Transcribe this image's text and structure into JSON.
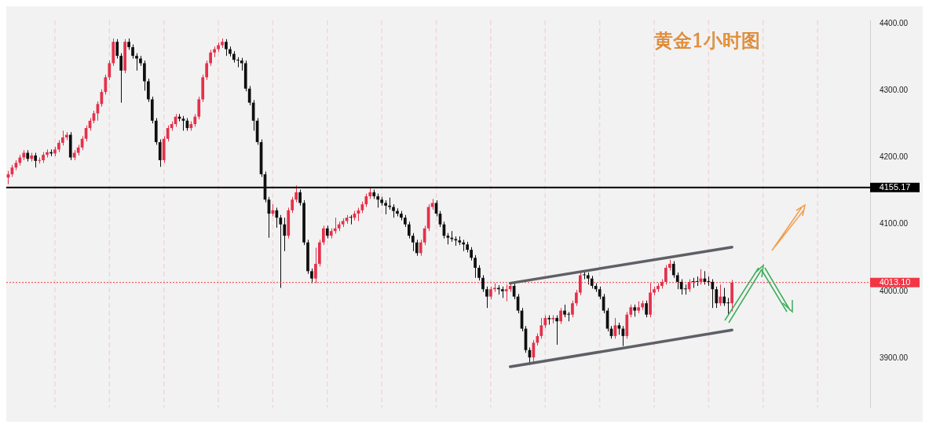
{
  "chart_data": {
    "type": "candlestick",
    "title": "黄金1小时图",
    "categories": [
      null,
      null,
      null,
      null,
      null,
      null,
      null,
      null,
      null,
      null,
      null,
      null,
      null,
      null,
      null,
      null,
      null,
      null,
      null,
      null,
      null,
      null,
      null,
      null,
      null,
      null,
      null,
      null,
      null,
      null,
      null,
      null,
      null,
      null,
      null,
      null,
      null,
      null,
      null,
      null,
      null,
      null,
      null,
      null,
      null,
      null,
      null,
      null,
      null,
      null,
      null,
      null,
      null,
      null,
      null,
      null,
      null,
      null,
      null,
      null,
      null,
      null,
      null,
      null,
      null,
      null,
      null,
      null,
      null,
      null,
      null,
      null,
      null,
      null,
      null,
      null,
      null,
      null,
      null,
      null,
      null,
      null,
      null,
      null,
      null,
      null,
      null,
      null,
      null,
      null,
      null,
      null,
      null,
      null,
      null,
      null,
      null,
      null,
      null,
      null,
      null,
      null,
      null,
      null,
      null,
      null,
      null,
      null,
      null,
      null,
      null,
      null,
      null,
      null,
      null,
      null,
      null,
      null,
      null,
      null,
      null,
      null,
      null,
      null,
      null,
      null,
      null,
      null,
      null,
      null,
      null,
      null,
      null,
      null,
      null,
      null,
      null,
      null,
      null,
      null,
      null,
      null,
      null,
      null,
      null,
      null,
      null,
      null,
      null,
      null,
      null,
      null,
      null,
      null,
      null,
      null,
      null,
      null,
      null,
      null,
      null,
      null,
      null,
      null,
      null,
      null,
      null,
      null,
      null,
      null,
      null,
      null,
      null,
      null,
      null,
      null,
      null,
      null,
      null,
      null,
      null,
      null,
      null,
      null,
      null,
      null,
      null,
      null,
      null,
      null,
      null,
      null,
      null,
      null,
      null,
      null,
      null,
      null,
      null,
      null,
      null,
      null,
      null,
      null,
      null,
      null,
      null,
      null,
      null,
      null,
      null,
      null,
      null,
      null,
      null,
      null,
      null,
      null,
      null,
      null,
      null,
      null
    ],
    "colors": [
      "#e5304a",
      "#e5304a",
      "#e5304a",
      "#e5304a",
      "#e5304a",
      "#0f0f0f",
      "#e5304a",
      "#0f0f0f",
      "#e5304a",
      "#e5304a",
      "#e5304a",
      "#0f0f0f",
      "#e5304a",
      "#e5304a",
      "#e5304a",
      "#e5304a",
      "#0f0f0f",
      "#e5304a",
      "#e5304a",
      "#e5304a",
      "#e5304a",
      "#e5304a",
      "#e5304a",
      "#e5304a",
      "#e5304a",
      "#e5304a",
      "#e5304a",
      "#e5304a",
      "#0f0f0f",
      "#0f0f0f",
      "#e5304a",
      "#0f0f0f",
      "#0f0f0f",
      "#0f0f0f",
      "#0f0f0f",
      "#0f0f0f",
      "#0f0f0f",
      "#0f0f0f",
      "#0f0f0f",
      "#0f0f0f",
      "#e5304a",
      "#e5304a",
      "#e5304a",
      "#e5304a",
      "#0f0f0f",
      "#0f0f0f",
      "#0f0f0f",
      "#e5304a",
      "#e5304a",
      "#e5304a",
      "#e5304a",
      "#e5304a",
      "#e5304a",
      "#e5304a",
      "#e5304a",
      "#e5304a",
      "#0f0f0f",
      "#0f0f0f",
      "#0f0f0f",
      "#0f0f0f",
      "#0f0f0f",
      "#0f0f0f",
      "#0f0f0f",
      "#0f0f0f",
      "#0f0f0f",
      "#0f0f0f",
      "#0f0f0f",
      "#0f0f0f",
      "#e5304a",
      "#0f0f0f",
      "#0f0f0f",
      "#0f0f0f",
      "#e5304a",
      "#e5304a",
      "#e5304a",
      "#0f0f0f",
      "#0f0f0f",
      "#0f0f0f",
      "#0f0f0f",
      "#e5304a",
      "#e5304a",
      "#e5304a",
      "#0f0f0f",
      "#e5304a",
      "#e5304a",
      "#e5304a",
      "#e5304a",
      "#e5304a",
      "#0f0f0f",
      "#e5304a",
      "#e5304a",
      "#e5304a",
      "#e5304a",
      "#e5304a",
      "#0f0f0f",
      "#0f0f0f",
      "#0f0f0f",
      "#0f0f0f",
      "#0f0f0f",
      "#0f0f0f",
      "#0f0f0f",
      "#0f0f0f",
      "#0f0f0f",
      "#0f0f0f",
      "#0f0f0f",
      "#0f0f0f",
      "#e5304a",
      "#e5304a",
      "#e5304a",
      "#e5304a",
      "#0f0f0f",
      "#0f0f0f",
      "#0f0f0f",
      "#0f0f0f",
      "#0f0f0f",
      "#0f0f0f",
      "#0f0f0f",
      "#0f0f0f",
      "#0f0f0f",
      "#0f0f0f",
      "#0f0f0f",
      "#0f0f0f",
      "#0f0f0f",
      "#0f0f0f",
      "#e5304a",
      "#e5304a",
      "#0f0f0f",
      "#0f0f0f",
      "#e5304a",
      "#e5304a",
      "#0f0f0f",
      "#0f0f0f",
      "#0f0f0f",
      "#0f0f0f",
      "#0f0f0f",
      "#e5304a",
      "#e5304a",
      "#e5304a",
      "#e5304a",
      "#0f0f0f",
      "#e5304a",
      "#0f0f0f",
      "#e5304a",
      "#0f0f0f",
      "#0f0f0f",
      "#e5304a",
      "#e5304a",
      "#e5304a",
      "#0f0f0f",
      "#0f0f0f",
      "#0f0f0f",
      "#0f0f0f",
      "#0f0f0f",
      "#0f0f0f",
      "#0f0f0f",
      "#0f0f0f",
      "#e5304a",
      "#0f0f0f",
      "#0f0f0f",
      "#e5304a",
      "#e5304a",
      "#0f0f0f",
      "#e5304a",
      "#e5304a",
      "#0f0f0f",
      "#e5304a",
      "#e5304a",
      "#e5304a",
      "#e5304a",
      "#e5304a",
      "#e5304a",
      "#0f0f0f",
      "#0f0f0f",
      "#0f0f0f",
      "#0f0f0f",
      "#e5304a",
      "#0f0f0f",
      "#0f0f0f",
      "#e5304a",
      "#0f0f0f",
      "#0f0f0f",
      "#0f0f0f",
      "#0f0f0f",
      "#e5304a",
      "#0f0f0f",
      "#0f0f0f",
      "#e5304a",
      null,
      null,
      null,
      null,
      null,
      null,
      null,
      null,
      null,
      null,
      null,
      null,
      null,
      null,
      null,
      null,
      null,
      null,
      null,
      null,
      null,
      null,
      null,
      null,
      null,
      null,
      null,
      null,
      null,
      null,
      null,
      null,
      null,
      null,
      null
    ],
    "ohlc": [
      [
        4170,
        4180,
        4160,
        4175
      ],
      [
        4175,
        4189,
        4171,
        4185
      ],
      [
        4185,
        4196,
        4181,
        4192
      ],
      [
        4192,
        4204,
        4188,
        4200
      ],
      [
        4200,
        4211,
        4196,
        4207
      ],
      [
        4207,
        4211,
        4194,
        4198
      ],
      [
        4198,
        4207,
        4194,
        4203
      ],
      [
        4203,
        4207,
        4185,
        4195
      ],
      [
        4195,
        4200,
        4191,
        4196
      ],
      [
        4196,
        4208,
        4192,
        4204
      ],
      [
        4204,
        4212,
        4200,
        4208
      ],
      [
        4208,
        4212,
        4202,
        4206
      ],
      [
        4206,
        4216,
        4202,
        4212
      ],
      [
        4212,
        4226,
        4208,
        4222
      ],
      [
        4222,
        4240,
        4218,
        4230
      ],
      [
        4230,
        4238,
        4226,
        4234
      ],
      [
        4234,
        4238,
        4196,
        4200
      ],
      [
        4200,
        4211,
        4196,
        4207
      ],
      [
        4207,
        4219,
        4203,
        4215
      ],
      [
        4215,
        4232,
        4211,
        4228
      ],
      [
        4228,
        4248,
        4224,
        4244
      ],
      [
        4244,
        4259,
        4240,
        4255
      ],
      [
        4255,
        4270,
        4251,
        4266
      ],
      [
        4266,
        4284,
        4255,
        4280
      ],
      [
        4280,
        4302,
        4276,
        4298
      ],
      [
        4298,
        4324,
        4294,
        4320
      ],
      [
        4320,
        4345,
        4316,
        4341
      ],
      [
        4341,
        4378,
        4337,
        4373
      ],
      [
        4373,
        4377,
        4348,
        4352
      ],
      [
        4352,
        4356,
        4282,
        4330
      ],
      [
        4330,
        4377,
        4326,
        4373
      ],
      [
        4373,
        4378,
        4361,
        4365
      ],
      [
        4365,
        4369,
        4348,
        4352
      ],
      [
        4352,
        4356,
        4330,
        4348
      ],
      [
        4348,
        4352,
        4337,
        4341
      ],
      [
        4341,
        4345,
        4300,
        4314
      ],
      [
        4314,
        4318,
        4283,
        4287
      ],
      [
        4287,
        4291,
        4251,
        4255
      ],
      [
        4255,
        4259,
        4219,
        4223
      ],
      [
        4223,
        4227,
        4186,
        4196
      ],
      [
        4196,
        4232,
        4192,
        4228
      ],
      [
        4228,
        4248,
        4224,
        4244
      ],
      [
        4244,
        4254,
        4240,
        4250
      ],
      [
        4250,
        4265,
        4246,
        4261
      ],
      [
        4261,
        4265,
        4254,
        4258
      ],
      [
        4258,
        4262,
        4240,
        4255
      ],
      [
        4255,
        4259,
        4240,
        4244
      ],
      [
        4244,
        4254,
        4240,
        4250
      ],
      [
        4250,
        4265,
        4246,
        4261
      ],
      [
        4261,
        4291,
        4257,
        4287
      ],
      [
        4287,
        4324,
        4283,
        4320
      ],
      [
        4320,
        4345,
        4316,
        4341
      ],
      [
        4341,
        4361,
        4337,
        4357
      ],
      [
        4357,
        4366,
        4350,
        4362
      ],
      [
        4362,
        4372,
        4358,
        4368
      ],
      [
        4368,
        4378,
        4364,
        4373
      ],
      [
        4373,
        4377,
        4352,
        4362
      ],
      [
        4362,
        4366,
        4351,
        4355
      ],
      [
        4355,
        4359,
        4342,
        4346
      ],
      [
        4346,
        4350,
        4335,
        4345
      ],
      [
        4345,
        4349,
        4330,
        4341
      ],
      [
        4341,
        4345,
        4299,
        4303
      ],
      [
        4303,
        4307,
        4278,
        4282
      ],
      [
        4282,
        4286,
        4240,
        4255
      ],
      [
        4255,
        4259,
        4219,
        4223
      ],
      [
        4223,
        4227,
        4171,
        4175
      ],
      [
        4175,
        4179,
        4133,
        4137
      ],
      [
        4137,
        4141,
        4080,
        4116
      ],
      [
        4116,
        4130,
        4112,
        4121
      ],
      [
        4121,
        4125,
        4095,
        4110
      ],
      [
        4110,
        4114,
        4005,
        4100
      ],
      [
        4100,
        4110,
        4060,
        4083
      ],
      [
        4083,
        4125,
        4079,
        4121
      ],
      [
        4121,
        4141,
        4117,
        4137
      ],
      [
        4137,
        4158,
        4133,
        4148
      ],
      [
        4148,
        4152,
        4128,
        4132
      ],
      [
        4132,
        4136,
        4069,
        4073
      ],
      [
        4073,
        4077,
        4026,
        4030
      ],
      [
        4030,
        4034,
        4012,
        4019
      ],
      [
        4019,
        4065,
        4012,
        4041
      ],
      [
        4041,
        4077,
        4037,
        4073
      ],
      [
        4073,
        4098,
        4069,
        4094
      ],
      [
        4094,
        4098,
        4079,
        4083
      ],
      [
        4083,
        4094,
        4079,
        4090
      ],
      [
        4090,
        4110,
        4086,
        4094
      ],
      [
        4094,
        4104,
        4090,
        4100
      ],
      [
        4100,
        4109,
        4096,
        4105
      ],
      [
        4105,
        4114,
        4101,
        4110
      ],
      [
        4110,
        4114,
        4100,
        4110
      ],
      [
        4110,
        4120,
        4106,
        4116
      ],
      [
        4116,
        4125,
        4105,
        4121
      ],
      [
        4121,
        4134,
        4117,
        4130
      ],
      [
        4130,
        4146,
        4126,
        4142
      ],
      [
        4142,
        4155,
        4138,
        4148
      ],
      [
        4148,
        4152,
        4138,
        4142
      ],
      [
        4142,
        4146,
        4125,
        4137
      ],
      [
        4137,
        4141,
        4128,
        4132
      ],
      [
        4132,
        4136,
        4115,
        4128
      ],
      [
        4128,
        4140,
        4122,
        4126
      ],
      [
        4126,
        4130,
        4110,
        4120
      ],
      [
        4120,
        4124,
        4112,
        4116
      ],
      [
        4116,
        4120,
        4106,
        4110
      ],
      [
        4110,
        4114,
        4096,
        4100
      ],
      [
        4100,
        4104,
        4079,
        4083
      ],
      [
        4083,
        4087,
        4060,
        4073
      ],
      [
        4073,
        4077,
        4053,
        4057
      ],
      [
        4057,
        4077,
        4053,
        4073
      ],
      [
        4073,
        4098,
        4069,
        4094
      ],
      [
        4094,
        4130,
        4090,
        4126
      ],
      [
        4126,
        4138,
        4122,
        4132
      ],
      [
        4132,
        4136,
        4112,
        4116
      ],
      [
        4116,
        4120,
        4096,
        4100
      ],
      [
        4100,
        4104,
        4079,
        4083
      ],
      [
        4083,
        4087,
        4070,
        4080
      ],
      [
        4080,
        4090,
        4074,
        4078
      ],
      [
        4078,
        4082,
        4068,
        4076
      ],
      [
        4076,
        4082,
        4069,
        4073
      ],
      [
        4073,
        4077,
        4060,
        4070
      ],
      [
        4070,
        4074,
        4058,
        4062
      ],
      [
        4062,
        4066,
        4046,
        4050
      ],
      [
        4050,
        4054,
        4020,
        4035
      ],
      [
        4035,
        4039,
        4016,
        4020
      ],
      [
        4020,
        4024,
        3999,
        4003
      ],
      [
        4003,
        4007,
        3975,
        3992
      ],
      [
        3992,
        4007,
        3988,
        4003
      ],
      [
        4003,
        4012,
        3999,
        4005
      ],
      [
        4005,
        4009,
        3995,
        4003
      ],
      [
        4003,
        4007,
        3990,
        4000
      ],
      [
        4000,
        4010,
        3985,
        4003
      ],
      [
        4003,
        4013,
        3999,
        4008
      ],
      [
        4008,
        4012,
        3988,
        3992
      ],
      [
        3992,
        3996,
        3967,
        3971
      ],
      [
        3971,
        3975,
        3940,
        3944
      ],
      [
        3944,
        3948,
        3908,
        3912
      ],
      [
        3912,
        3916,
        3890,
        3901
      ],
      [
        3901,
        3927,
        3893,
        3923
      ],
      [
        3923,
        3937,
        3919,
        3933
      ],
      [
        3933,
        3960,
        3929,
        3949
      ],
      [
        3949,
        3964,
        3945,
        3960
      ],
      [
        3960,
        3964,
        3950,
        3958
      ],
      [
        3958,
        3964,
        3952,
        3960
      ],
      [
        3960,
        3964,
        3920,
        3955
      ],
      [
        3955,
        3975,
        3951,
        3971
      ],
      [
        3971,
        3980,
        3961,
        3965
      ],
      [
        3965,
        3969,
        3955,
        3965
      ],
      [
        3965,
        3986,
        3961,
        3982
      ],
      [
        3982,
        4002,
        3978,
        3998
      ],
      [
        3998,
        4028,
        3994,
        4024
      ],
      [
        4024,
        4030,
        4018,
        4024
      ],
      [
        4024,
        4028,
        4010,
        4019
      ],
      [
        4019,
        4023,
        4004,
        4008
      ],
      [
        4008,
        4012,
        3999,
        4003
      ],
      [
        4003,
        4007,
        3988,
        3992
      ],
      [
        3992,
        3996,
        3967,
        3971
      ],
      [
        3971,
        3975,
        3940,
        3944
      ],
      [
        3944,
        3948,
        3929,
        3933
      ],
      [
        3933,
        3960,
        3929,
        3949
      ],
      [
        3949,
        3953,
        3935,
        3944
      ],
      [
        3944,
        3948,
        3918,
        3933
      ],
      [
        3933,
        3969,
        3929,
        3965
      ],
      [
        3965,
        3980,
        3961,
        3976
      ],
      [
        3976,
        3980,
        3962,
        3971
      ],
      [
        3971,
        3985,
        3967,
        3976
      ],
      [
        3976,
        3986,
        3972,
        3982
      ],
      [
        3982,
        3986,
        3961,
        3965
      ],
      [
        3965,
        4012,
        3961,
        3998
      ],
      [
        3998,
        4007,
        3994,
        4003
      ],
      [
        4003,
        4012,
        3999,
        4008
      ],
      [
        4008,
        4018,
        4004,
        4014
      ],
      [
        4014,
        4039,
        4010,
        4035
      ],
      [
        4035,
        4047,
        4031,
        4041
      ],
      [
        4041,
        4045,
        4020,
        4024
      ],
      [
        4024,
        4028,
        4003,
        4014
      ],
      [
        4014,
        4018,
        3995,
        4003
      ],
      [
        4003,
        4010,
        3995,
        4003
      ],
      [
        4003,
        4018,
        3999,
        4014
      ],
      [
        4014,
        4020,
        4005,
        4014
      ],
      [
        4014,
        4022,
        4008,
        4014
      ],
      [
        4014,
        4033,
        4010,
        4019
      ],
      [
        4019,
        4030,
        4010,
        4014
      ],
      [
        4014,
        4022,
        4008,
        4014
      ],
      [
        4014,
        4018,
        3975,
        4003
      ],
      [
        4003,
        4007,
        3975,
        3982
      ],
      [
        3982,
        4010,
        3978,
        3992
      ],
      [
        3992,
        4005,
        3978,
        3982
      ],
      [
        3982,
        3990,
        3966,
        3982
      ],
      [
        3982,
        4017,
        3970,
        4013.1
      ],
      null,
      null,
      null,
      null,
      null,
      null,
      null,
      null,
      null,
      null,
      null,
      null,
      null,
      null,
      null,
      null,
      null,
      null,
      null,
      null,
      null,
      null,
      null,
      null,
      null,
      null,
      null,
      null,
      null,
      null,
      null,
      null,
      null,
      null,
      null
    ],
    "series": [
      {
        "type": "line",
        "color": "#5f5f66",
        "values": [
          null,
          null,
          null,
          null,
          null,
          null,
          null,
          null,
          null,
          null,
          null,
          null,
          null,
          null,
          null,
          null,
          null,
          null,
          null,
          null,
          null,
          null,
          null,
          null,
          null,
          null,
          null,
          null,
          null,
          null,
          null,
          null,
          null,
          null,
          null,
          null,
          null,
          null,
          null,
          null,
          null,
          null,
          null,
          null,
          null,
          null,
          null,
          null,
          null,
          null,
          null,
          null,
          null,
          null,
          null,
          null,
          null,
          null,
          null,
          null,
          null,
          null,
          null,
          null,
          null,
          null,
          null,
          null,
          null,
          null,
          null,
          null,
          null,
          null,
          null,
          null,
          null,
          null,
          null,
          null,
          null,
          null,
          null,
          null,
          null,
          null,
          null,
          null,
          null,
          null,
          null,
          null,
          null,
          null,
          null,
          null,
          null,
          null,
          null,
          null,
          null,
          null,
          null,
          null,
          null,
          null,
          null,
          null,
          null,
          null,
          null,
          null,
          null,
          null,
          null,
          null,
          null,
          null,
          null,
          null,
          null,
          null,
          null,
          null,
          null,
          null,
          null,
          null,
          null,
          4012,
          null,
          null,
          null,
          null,
          null,
          null,
          null,
          null,
          null,
          null,
          null,
          null,
          null,
          null,
          null,
          null,
          null,
          null,
          null,
          null,
          null,
          null,
          null,
          null,
          null,
          null,
          null,
          null,
          null,
          null,
          null,
          null,
          null,
          null,
          null,
          null,
          null,
          null,
          null,
          null,
          null,
          null,
          null,
          null,
          null,
          null,
          null,
          null,
          null,
          null,
          null,
          null,
          null,
          null,
          null,
          null,
          4066,
          null,
          null,
          null,
          null,
          null,
          null,
          null,
          null,
          null,
          null,
          null,
          null,
          null,
          null,
          null,
          null,
          null,
          null,
          null,
          null,
          null,
          null,
          null,
          null,
          null,
          null,
          null,
          null,
          null,
          null,
          null,
          null,
          null,
          null,
          null
        ]
      },
      {
        "type": "line",
        "color": "#5f5f66",
        "values": [
          null,
          null,
          null,
          null,
          null,
          null,
          null,
          null,
          null,
          null,
          null,
          null,
          null,
          null,
          null,
          null,
          null,
          null,
          null,
          null,
          null,
          null,
          null,
          null,
          null,
          null,
          null,
          null,
          null,
          null,
          null,
          null,
          null,
          null,
          null,
          null,
          null,
          null,
          null,
          null,
          null,
          null,
          null,
          null,
          null,
          null,
          null,
          null,
          null,
          null,
          null,
          null,
          null,
          null,
          null,
          null,
          null,
          null,
          null,
          null,
          null,
          null,
          null,
          null,
          null,
          null,
          null,
          null,
          null,
          null,
          null,
          null,
          null,
          null,
          null,
          null,
          null,
          null,
          null,
          null,
          null,
          null,
          null,
          null,
          null,
          null,
          null,
          null,
          null,
          null,
          null,
          null,
          null,
          null,
          null,
          null,
          null,
          null,
          null,
          null,
          null,
          null,
          null,
          null,
          null,
          null,
          null,
          null,
          null,
          null,
          null,
          null,
          null,
          null,
          null,
          null,
          null,
          null,
          null,
          null,
          null,
          null,
          null,
          null,
          null,
          null,
          null,
          null,
          null,
          3887,
          null,
          null,
          null,
          null,
          null,
          null,
          null,
          null,
          null,
          null,
          null,
          null,
          null,
          null,
          null,
          null,
          null,
          null,
          null,
          null,
          null,
          null,
          null,
          null,
          null,
          null,
          null,
          null,
          null,
          null,
          null,
          null,
          null,
          null,
          null,
          null,
          null,
          null,
          null,
          null,
          null,
          null,
          null,
          null,
          null,
          null,
          null,
          null,
          null,
          null,
          null,
          null,
          null,
          null,
          null,
          null,
          3942,
          null,
          null,
          null,
          null,
          null,
          null,
          null,
          null,
          null,
          null,
          null,
          null,
          null,
          null,
          null,
          null,
          null,
          null,
          null,
          null,
          null,
          null,
          null,
          null,
          null,
          null,
          null,
          null,
          null,
          null,
          null,
          null,
          null,
          null,
          null
        ]
      }
    ],
    "ylim": [
      3826,
      4405
    ],
    "yticks": [
      {
        "value": 3900,
        "label": "3900.00"
      },
      {
        "value": 4000,
        "label": "4000.00"
      },
      {
        "value": 4100,
        "label": "4100.00"
      },
      {
        "value": 4200,
        "label": "4200.00"
      },
      {
        "value": 4300,
        "label": "4300.00"
      },
      {
        "value": 4400,
        "label": "4400.00"
      }
    ],
    "ref_lines": [
      {
        "axis": "y",
        "value": 4155.17,
        "label": "4155.17",
        "color": "#000000",
        "line_style": "solid"
      },
      {
        "axis": "y",
        "value": 4013.1,
        "label": "4013.10",
        "color": "#f23645",
        "line_style": "dotted"
      }
    ],
    "grid": "x"
  }
}
